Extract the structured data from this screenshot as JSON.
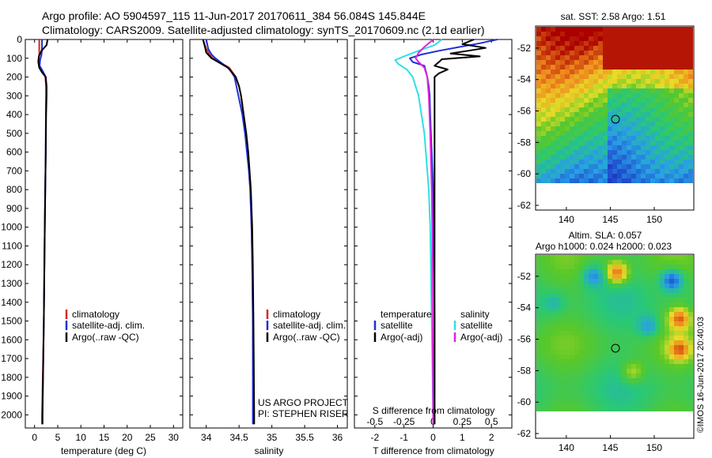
{
  "header": {
    "line1": "Argo profile: AO 5904597_115 11-Jun-2017 20170611_384 56.084S 145.844E",
    "line2": "Climatology: CARS2009. Satellite-adjusted climatology: synTS_20170609.nc (2.1d earlier)"
  },
  "colors": {
    "climatology": "#d42a1e",
    "satellite": "#1f2fd6",
    "argo": "#000000",
    "sat_s": "#2fe0e6",
    "argo_s": "#e020e0"
  },
  "chart_data": [
    {
      "id": "temperature",
      "type": "line",
      "xlabel": "temperature (deg C)",
      "ylabel": "",
      "xlim": [
        -2,
        32
      ],
      "ylim": [
        2070,
        0
      ],
      "xticks": [
        "0",
        "5",
        "10",
        "15",
        "20",
        "25",
        "30"
      ],
      "yticks": [
        "0",
        "100",
        "200",
        "300",
        "400",
        "500",
        "600",
        "700",
        "800",
        "900",
        "1000",
        "1100",
        "1200",
        "1300",
        "1400",
        "1500",
        "1600",
        "1700",
        "1800",
        "1900",
        "2000"
      ],
      "legend": [
        "climatology",
        "satellite-adj. clim.",
        "Argo(..raw -QC)"
      ],
      "series": [
        {
          "name": "climatology",
          "color": "#d42a1e",
          "depth": [
            0,
            40,
            80,
            110,
            140,
            170,
            200,
            250,
            300,
            400,
            600,
            800,
            1000,
            1500,
            2000,
            2050
          ],
          "values": [
            1.0,
            1.0,
            1.0,
            0.9,
            1.0,
            1.8,
            2.3,
            2.5,
            2.5,
            2.45,
            2.4,
            2.3,
            2.2,
            2.0,
            1.6,
            1.6
          ]
        },
        {
          "name": "satellite-adj. clim.",
          "color": "#1f2fd6",
          "depth": [
            0,
            40,
            80,
            110,
            140,
            170,
            200,
            250,
            300,
            400,
            600,
            800,
            1000,
            1500,
            2000,
            2050
          ],
          "values": [
            1.6,
            1.6,
            1.5,
            1.2,
            1.1,
            1.8,
            2.4,
            2.5,
            2.5,
            2.45,
            2.4,
            2.3,
            2.2,
            2.0,
            1.7,
            1.7
          ]
        },
        {
          "name": "Argo(..raw -QC)",
          "color": "#000000",
          "depth": [
            0,
            30,
            60,
            90,
            120,
            150,
            175,
            200,
            250,
            300,
            400,
            600,
            800,
            1000,
            1500,
            2000,
            2050
          ],
          "values": [
            2.8,
            2.6,
            1.5,
            0.9,
            0.8,
            1.0,
            1.6,
            2.4,
            2.6,
            2.6,
            2.5,
            2.4,
            2.3,
            2.2,
            2.0,
            1.7,
            1.7
          ]
        }
      ]
    },
    {
      "id": "salinity",
      "type": "line",
      "xlabel": "salinity",
      "xlim": [
        33.75,
        36.15
      ],
      "ylim": [
        2070,
        0
      ],
      "xticks": [
        "34",
        "34.5",
        "35",
        "35.5",
        "36"
      ],
      "legend": [
        "climatology",
        "satellite-adj. clim.",
        "Argo(..raw -QC)"
      ],
      "annotation": [
        "US ARGO PROJECT",
        "PI: STEPHEN RISER"
      ],
      "series": [
        {
          "name": "climatology",
          "color": "#d42a1e",
          "depth": [
            0,
            50,
            80,
            100,
            120,
            150,
            200,
            250,
            300,
            400,
            500,
            600,
            700,
            800,
            1000,
            1200,
            1500,
            2000,
            2050
          ],
          "values": [
            33.95,
            34.0,
            34.05,
            34.1,
            34.2,
            34.35,
            34.45,
            34.5,
            34.53,
            34.57,
            34.6,
            34.63,
            34.65,
            34.67,
            34.69,
            34.7,
            34.71,
            34.72,
            34.72
          ]
        },
        {
          "name": "satellite-adj. clim.",
          "color": "#1f2fd6",
          "depth": [
            0,
            50,
            80,
            100,
            130,
            160,
            200,
            250,
            300,
            400,
            500,
            600,
            700,
            800,
            1000,
            1200,
            1500,
            2000,
            2050
          ],
          "values": [
            34.0,
            34.03,
            34.08,
            34.14,
            34.25,
            34.36,
            34.43,
            34.46,
            34.49,
            34.55,
            34.59,
            34.62,
            34.65,
            34.67,
            34.69,
            34.7,
            34.71,
            34.71,
            34.71
          ]
        },
        {
          "name": "Argo(..raw -QC)",
          "color": "#000000",
          "depth": [
            0,
            40,
            70,
            100,
            120,
            150,
            200,
            250,
            300,
            400,
            500,
            600,
            700,
            800,
            1000,
            1200,
            1500,
            2000,
            2050
          ],
          "values": [
            33.95,
            33.98,
            34.0,
            34.08,
            34.18,
            34.33,
            34.45,
            34.5,
            34.53,
            34.57,
            34.61,
            34.64,
            34.66,
            34.68,
            34.7,
            34.71,
            34.72,
            34.73,
            34.73
          ]
        }
      ]
    },
    {
      "id": "difference",
      "type": "line",
      "xlabel": "T difference from climatology",
      "xlabel2": "S difference from climatology",
      "xlim": [
        -2.7,
        2.7
      ],
      "ylim": [
        2070,
        0
      ],
      "xticks": [
        "-2",
        "-1",
        "0",
        "1",
        "2"
      ],
      "xticks2": [
        "-0.5",
        "-0.25",
        "0",
        "0.25",
        "0.5"
      ],
      "legend_t_title": "temperature",
      "legend_s_title": "salinity",
      "legend_t": [
        "satellite",
        "Argo(-adj)"
      ],
      "legend_s": [
        "satellite",
        "Argo(-adj)"
      ],
      "series": [
        {
          "name": "temperature satellite",
          "color": "#1f2fd6",
          "depth": [
            0,
            20,
            40,
            60,
            80,
            100,
            120,
            140,
            170,
            200,
            250,
            300,
            400,
            600,
            800,
            1000,
            1500,
            2000,
            2050
          ],
          "values": [
            2.2,
            1.6,
            0.9,
            0.2,
            -0.4,
            -0.8,
            -0.7,
            -0.3,
            -0.25,
            -0.2,
            -0.15,
            -0.12,
            -0.1,
            -0.05,
            0,
            0.02,
            0.05,
            0.05,
            0.05
          ]
        },
        {
          "name": "temperature Argo(-adj)",
          "color": "#000000",
          "depth": [
            0,
            25,
            45,
            60,
            75,
            90,
            105,
            120,
            140,
            160,
            180,
            200,
            250,
            300,
            400,
            600,
            800,
            1000,
            1500,
            2000,
            2050
          ],
          "values": [
            1.4,
            1.0,
            1.8,
            1.2,
            0.6,
            1.6,
            0.3,
            0.2,
            0.05,
            0.5,
            0.2,
            0.05,
            0.05,
            0.05,
            0.05,
            0.05,
            0.05,
            0.05,
            0.05,
            0.05,
            0.05
          ]
        },
        {
          "name": "salinity satellite",
          "color": "#2fe0e6",
          "depth": [
            0,
            30,
            60,
            90,
            110,
            130,
            160,
            200,
            300,
            500,
            800,
            1000,
            1500,
            2000,
            2050
          ],
          "values": [
            0.3,
            0.05,
            -0.5,
            -1.0,
            -1.3,
            -1.2,
            -0.9,
            -0.7,
            -0.5,
            -0.3,
            -0.15,
            -0.1,
            -0.05,
            0,
            0
          ]
        },
        {
          "name": "salinity Argo(-adj)",
          "color": "#e020e0",
          "depth": [
            0,
            40,
            70,
            100,
            120,
            150,
            200,
            300,
            500,
            800,
            1000,
            1500,
            2000,
            2050
          ],
          "values": [
            0,
            -0.3,
            -0.5,
            -0.6,
            -0.5,
            -0.3,
            -0.2,
            -0.15,
            -0.1,
            -0.05,
            -0.03,
            -0.02,
            0,
            0
          ]
        }
      ]
    },
    {
      "id": "sst_map",
      "type": "heatmap",
      "title": "sat. SST: 2.58 Argo: 1.51",
      "xticks": [
        "140",
        "145",
        "150"
      ],
      "yticks": [
        "-52",
        "-54",
        "-56",
        "-58",
        "-60",
        "-62"
      ],
      "marker": {
        "lon": 145.844,
        "lat": -56.084
      }
    },
    {
      "id": "sla_map",
      "type": "heatmap",
      "title_line1": "Altim. SLA: 0.057",
      "title_line2": "Argo h1000: 0.024 h2000: 0.023",
      "xticks": [
        "140",
        "145",
        "150"
      ],
      "yticks": [
        "-52",
        "-54",
        "-56",
        "-58",
        "-60",
        "-62"
      ],
      "marker": {
        "lon": 145.844,
        "lat": -56.084
      }
    }
  ],
  "footer": {
    "copyright": "©IMOS 16-Jun-2017 20:40:03"
  }
}
